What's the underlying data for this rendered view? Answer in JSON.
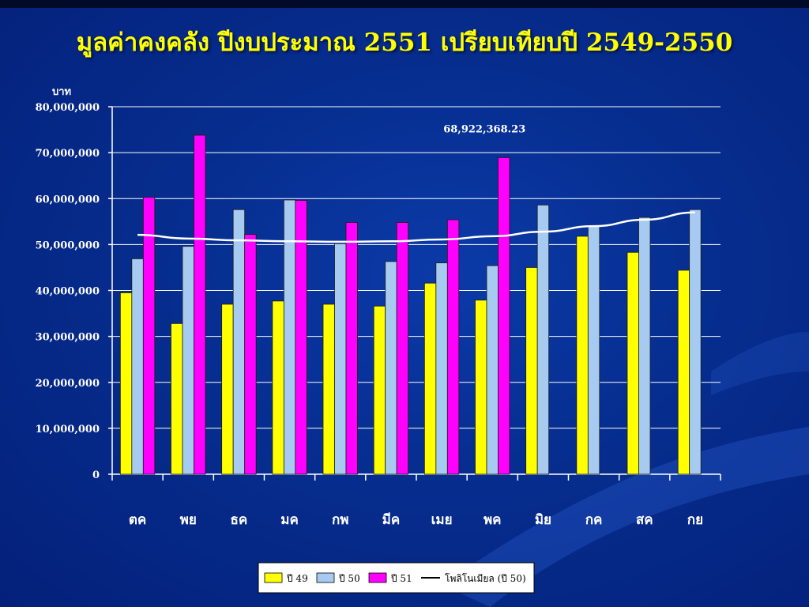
{
  "page": {
    "title": "มูลค่าคงคลัง ปีงบประมาณ 2551 เปรียบเทียบปี 2549-2550"
  },
  "chart_data": {
    "type": "bar",
    "title": "มูลค่าคงคลัง ปีงบประมาณ 2551 เปรียบเทียบปี 2549-2550",
    "ylabel": "บาท",
    "xlabel": "",
    "ylim": [
      0,
      80000000
    ],
    "yticks": [
      0,
      10000000,
      20000000,
      30000000,
      40000000,
      50000000,
      60000000,
      70000000,
      80000000
    ],
    "ytick_labels": [
      "0",
      "10,000,000",
      "20,000,000",
      "30,000,000",
      "40,000,000",
      "50,000,000",
      "60,000,000",
      "70,000,000",
      "80,000,000"
    ],
    "grid": true,
    "legend_position": "bottom",
    "categories": [
      "ตค",
      "พย",
      "ธค",
      "มค",
      "กพ",
      "มีค",
      "เมย",
      "พค",
      "มิย",
      "กค",
      "สค",
      "กย"
    ],
    "series": [
      {
        "name": "ปี 49",
        "color": "#ffff00",
        "values": [
          39500000,
          32800000,
          37000000,
          37700000,
          37000000,
          36600000,
          41600000,
          37900000,
          45000000,
          51800000,
          48300000,
          44400000
        ]
      },
      {
        "name": "ปี 50",
        "color": "#a6caf0",
        "values": [
          46900000,
          49600000,
          57600000,
          59700000,
          50200000,
          46300000,
          46000000,
          45400000,
          58600000,
          54100000,
          55900000,
          57600000
        ]
      },
      {
        "name": "ปี 51",
        "color": "#ff00ff",
        "values": [
          60300000,
          73800000,
          52200000,
          59600000,
          54800000,
          54800000,
          55400000,
          68922368.23,
          null,
          null,
          null,
          null
        ]
      }
    ],
    "trendline": {
      "name": "โพลิโนเมียล (ปี 50)",
      "color": "#ffffff",
      "values": [
        52100000,
        51300000,
        50900000,
        50700000,
        50600000,
        50700000,
        51100000,
        51800000,
        52800000,
        54000000,
        55400000,
        57000000
      ]
    },
    "annotations": [
      {
        "text": "68,922,368.23",
        "category": "พค",
        "value": 68922368.23
      }
    ]
  }
}
